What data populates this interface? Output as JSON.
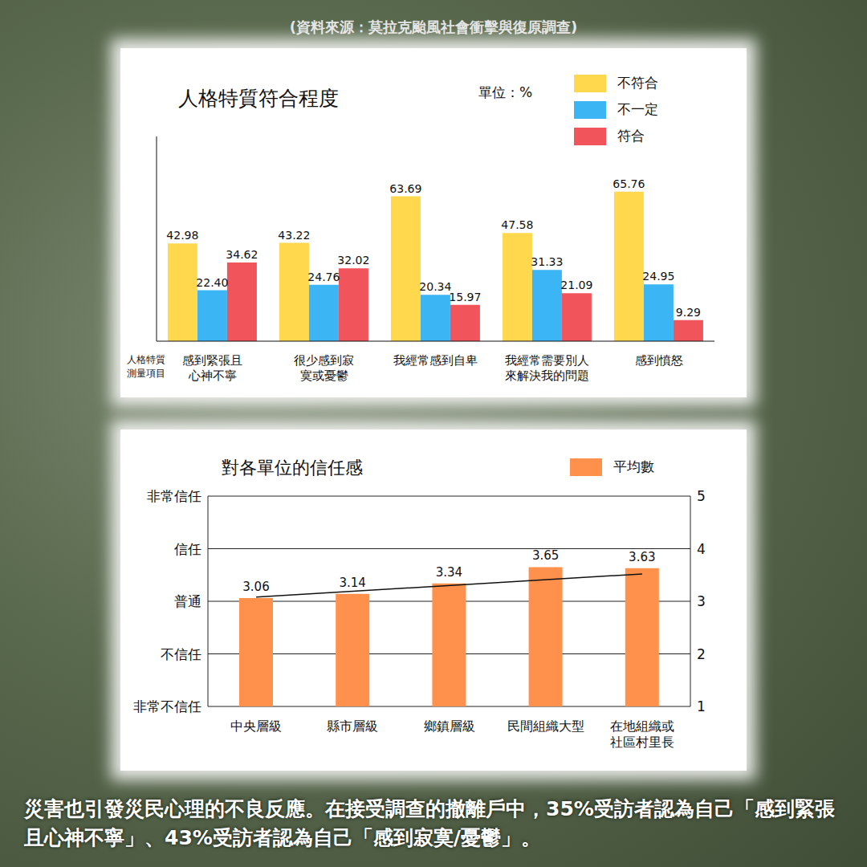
{
  "source": "(資料來源：莫拉克颱風社會衝擊與復原調查)",
  "caption": "災害也引發災民心理的不良反應。在接受調查的撤離戶中，35%受訪者認為自己「感到緊張且心神不寧」、43%受訪者認為自己「感到寂寞/憂鬱」。",
  "chart_data": [
    {
      "type": "bar",
      "title": "人格特質符合程度",
      "unit": "單位：%",
      "x_label": "人格特質測量項目",
      "categories": [
        "感到緊張且心神不寧",
        "很少感到寂寞或憂鬱",
        "我經常感到自卑",
        "我經常需要別人來解決我的問題",
        "感到憤怒"
      ],
      "series": [
        {
          "name": "不符合",
          "color": "#FFD84D",
          "values": [
            42.98,
            43.22,
            63.69,
            47.58,
            65.76
          ],
          "value_labels": [
            "42.98",
            "43.22",
            "63.69",
            "47.58",
            "65.76"
          ]
        },
        {
          "name": "不一定",
          "color": "#3BB5F3",
          "values": [
            22.4,
            24.76,
            20.34,
            31.33,
            24.95
          ],
          "value_labels": [
            "22.40",
            "24.76",
            "20.34",
            "31.33",
            "24.95"
          ]
        },
        {
          "name": "符合",
          "color": "#F2545B",
          "values": [
            34.62,
            32.02,
            15.97,
            21.09,
            9.29
          ],
          "value_labels": [
            "34.62",
            "32.02",
            "15.97",
            "21.09",
            "9.29"
          ]
        }
      ],
      "ylim": [
        0,
        90
      ],
      "grid": false,
      "legend": "top-right",
      "data_labels": true,
      "tick_labels": "x"
    },
    {
      "type": "bar",
      "title": "對各單位的信任感",
      "categories": [
        "中央層級",
        "縣市層級",
        "鄉鎮層級",
        "民間組織大型",
        "在地組織或社區村里長"
      ],
      "series": [
        {
          "name": "平均數",
          "color": "#FF914D",
          "values": [
            3.06,
            3.14,
            3.34,
            3.65,
            3.63
          ]
        }
      ],
      "ylim": [
        1,
        5
      ],
      "yticks": [
        {
          "value": 1,
          "label": "非常不信任"
        },
        {
          "value": 2,
          "label": "不信任"
        },
        {
          "value": 3,
          "label": "普通"
        },
        {
          "value": 4,
          "label": "信任"
        },
        {
          "value": 5,
          "label": "非常信任"
        }
      ],
      "y2lim": [
        1,
        5
      ],
      "y2ticks": [
        1,
        2,
        3,
        4,
        5
      ],
      "grid": true,
      "legend": "top-right",
      "data_labels": true,
      "trend_line": {
        "start": 3.08,
        "end": 3.52
      }
    }
  ]
}
